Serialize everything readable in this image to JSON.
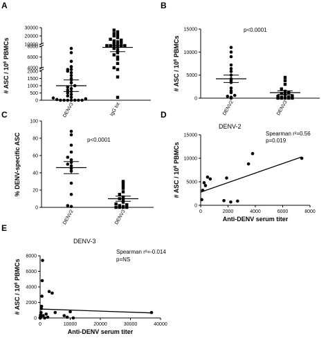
{
  "panels": {
    "A": {
      "letter": "A"
    },
    "B": {
      "letter": "B",
      "pvalue": "p<0.0001"
    },
    "C": {
      "letter": "C",
      "pvalue": "p<0.0001"
    },
    "D": {
      "letter": "D",
      "title": "DENV-2",
      "stat1": "Spearman r²=0.56",
      "stat2": "p=0.019"
    },
    "E": {
      "letter": "E",
      "title": "DENV-3",
      "stat1": "Spearman r²=-0.014",
      "stat2": "p=NS"
    }
  },
  "chart_data": [
    {
      "id": "A",
      "type": "scatter",
      "ylabel": "# ASC / 10⁶ PBMCs",
      "categories": [
        "DENV3",
        "IgG tot"
      ],
      "ytick_labels": [
        "0",
        "500",
        "1000",
        "1500",
        "2000",
        "4000",
        "6000",
        "8000",
        "10000",
        "20000",
        "30000"
      ],
      "axis_break": "between 2000 and 4000; between 8000 and 10000",
      "series": [
        {
          "values": [
            0,
            0,
            0,
            0,
            0,
            0,
            0,
            50,
            100,
            150,
            200,
            300,
            400,
            500,
            600,
            700,
            800,
            900,
            1000,
            1200,
            1400,
            1500,
            1700,
            1900,
            2000,
            2600,
            3400,
            4200,
            5200,
            6800,
            7600
          ],
          "mean": 1000,
          "sem": 400
        },
        {
          "values": [
            200,
            1600,
            3600,
            4000,
            4800,
            5600,
            6000,
            6400,
            6800,
            7200,
            7600,
            7800,
            8000,
            8400,
            8800,
            9200,
            9600,
            10000,
            11000,
            12000,
            13000,
            14000,
            15000,
            16000,
            18000,
            20000,
            21500,
            23000,
            25000,
            27000
          ],
          "mean": 7800,
          "sem": 800
        }
      ]
    },
    {
      "id": "B",
      "type": "scatter",
      "ylabel": "# ASC / 10⁶ PBMCs",
      "ylim": [
        0,
        15000
      ],
      "yticks": [
        0,
        5000,
        10000,
        15000
      ],
      "categories": [
        "DENV2",
        "DENV3"
      ],
      "series": [
        {
          "values": [
            0,
            200,
            400,
            600,
            1200,
            1600,
            2200,
            3400,
            3800,
            4200,
            5000,
            5800,
            6400,
            7200,
            9000,
            10000,
            11000
          ],
          "mean": 4200,
          "sem": 800
        },
        {
          "values": [
            0,
            0,
            0,
            0,
            0,
            100,
            200,
            300,
            400,
            500,
            800,
            1000,
            1200,
            1500,
            2000,
            3000,
            3800,
            4500
          ],
          "mean": 1200,
          "sem": 400
        }
      ]
    },
    {
      "id": "C",
      "type": "scatter",
      "ylabel": "% DENV-specific ASC",
      "ylim": [
        0,
        100
      ],
      "yticks": [
        0,
        20,
        40,
        60,
        80,
        100
      ],
      "categories": [
        "DENV2",
        "DENV3"
      ],
      "series": [
        {
          "values": [
            1,
            2,
            15,
            28,
            42,
            45,
            48,
            50,
            52,
            55,
            58,
            64,
            72,
            84,
            88
          ],
          "mean": 46,
          "sem": 7
        },
        {
          "values": [
            0,
            0,
            0,
            0,
            1,
            2,
            3,
            4,
            6,
            8,
            10,
            12,
            15,
            18,
            22,
            25,
            28,
            30
          ],
          "mean": 10,
          "sem": 3
        }
      ]
    },
    {
      "id": "D",
      "type": "scatter",
      "xlabel": "Anti-DENV serum titer",
      "ylabel": "# ASC / 10⁶ PBMCs",
      "xlim": [
        0,
        8000
      ],
      "ylim": [
        0,
        15000
      ],
      "xticks": [
        0,
        2000,
        4000,
        6000,
        8000
      ],
      "yticks": [
        0,
        5000,
        10000,
        15000
      ],
      "points": [
        [
          80,
          1200
        ],
        [
          150,
          3200
        ],
        [
          250,
          4800
        ],
        [
          350,
          4200
        ],
        [
          500,
          6000
        ],
        [
          700,
          5600
        ],
        [
          1700,
          1000
        ],
        [
          1900,
          5800
        ],
        [
          2200,
          700
        ],
        [
          2700,
          900
        ],
        [
          3500,
          8800
        ],
        [
          3800,
          11000
        ],
        [
          7400,
          10000
        ]
      ],
      "fit": [
        [
          0,
          2800
        ],
        [
          7400,
          10300
        ]
      ]
    },
    {
      "id": "E",
      "type": "scatter",
      "xlabel": "Anti-DENV serum titer",
      "ylabel": "# ASC / 10⁶ PBMCs",
      "xlim": [
        0,
        40000
      ],
      "ylim": [
        0,
        8000
      ],
      "xticks": [
        0,
        10000,
        20000,
        30000,
        40000
      ],
      "yticks": [
        0,
        2000,
        4000,
        6000,
        8000
      ],
      "points": [
        [
          50,
          0
        ],
        [
          100,
          200
        ],
        [
          150,
          400
        ],
        [
          200,
          100
        ],
        [
          300,
          700
        ],
        [
          400,
          1200
        ],
        [
          500,
          1500
        ],
        [
          600,
          2800
        ],
        [
          700,
          4800
        ],
        [
          800,
          7400
        ],
        [
          1000,
          300
        ],
        [
          1500,
          0
        ],
        [
          2000,
          500
        ],
        [
          2500,
          100
        ],
        [
          3000,
          3400
        ],
        [
          4000,
          3200
        ],
        [
          5000,
          700
        ],
        [
          8000,
          300
        ],
        [
          9000,
          100
        ],
        [
          10000,
          800
        ],
        [
          11000,
          0
        ],
        [
          37000,
          700
        ]
      ],
      "fit": [
        [
          0,
          1150
        ],
        [
          37000,
          650
        ]
      ]
    }
  ]
}
